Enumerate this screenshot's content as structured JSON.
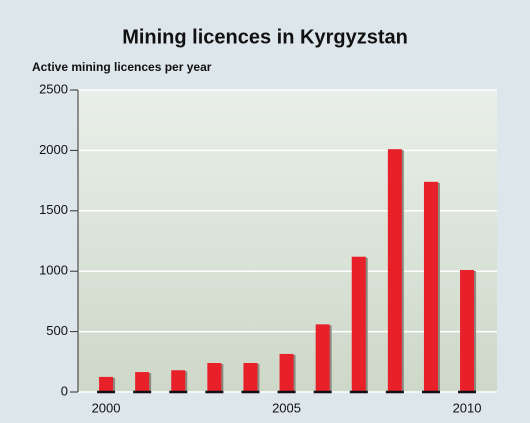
{
  "chart_data": {
    "type": "bar",
    "title": "Mining licences in Kyrgyzstan",
    "subtitle": "Active mining licences per year",
    "categories": [
      "2000",
      null,
      null,
      null,
      null,
      "2005",
      null,
      null,
      null,
      null,
      "2010"
    ],
    "values": [
      125,
      165,
      180,
      240,
      240,
      315,
      560,
      1120,
      2010,
      1740,
      1010
    ],
    "color": "#e8202a",
    "ylim": [
      0,
      2500
    ],
    "yticks": [
      0,
      500,
      1000,
      1500,
      2000,
      2500
    ],
    "grid": true
  }
}
